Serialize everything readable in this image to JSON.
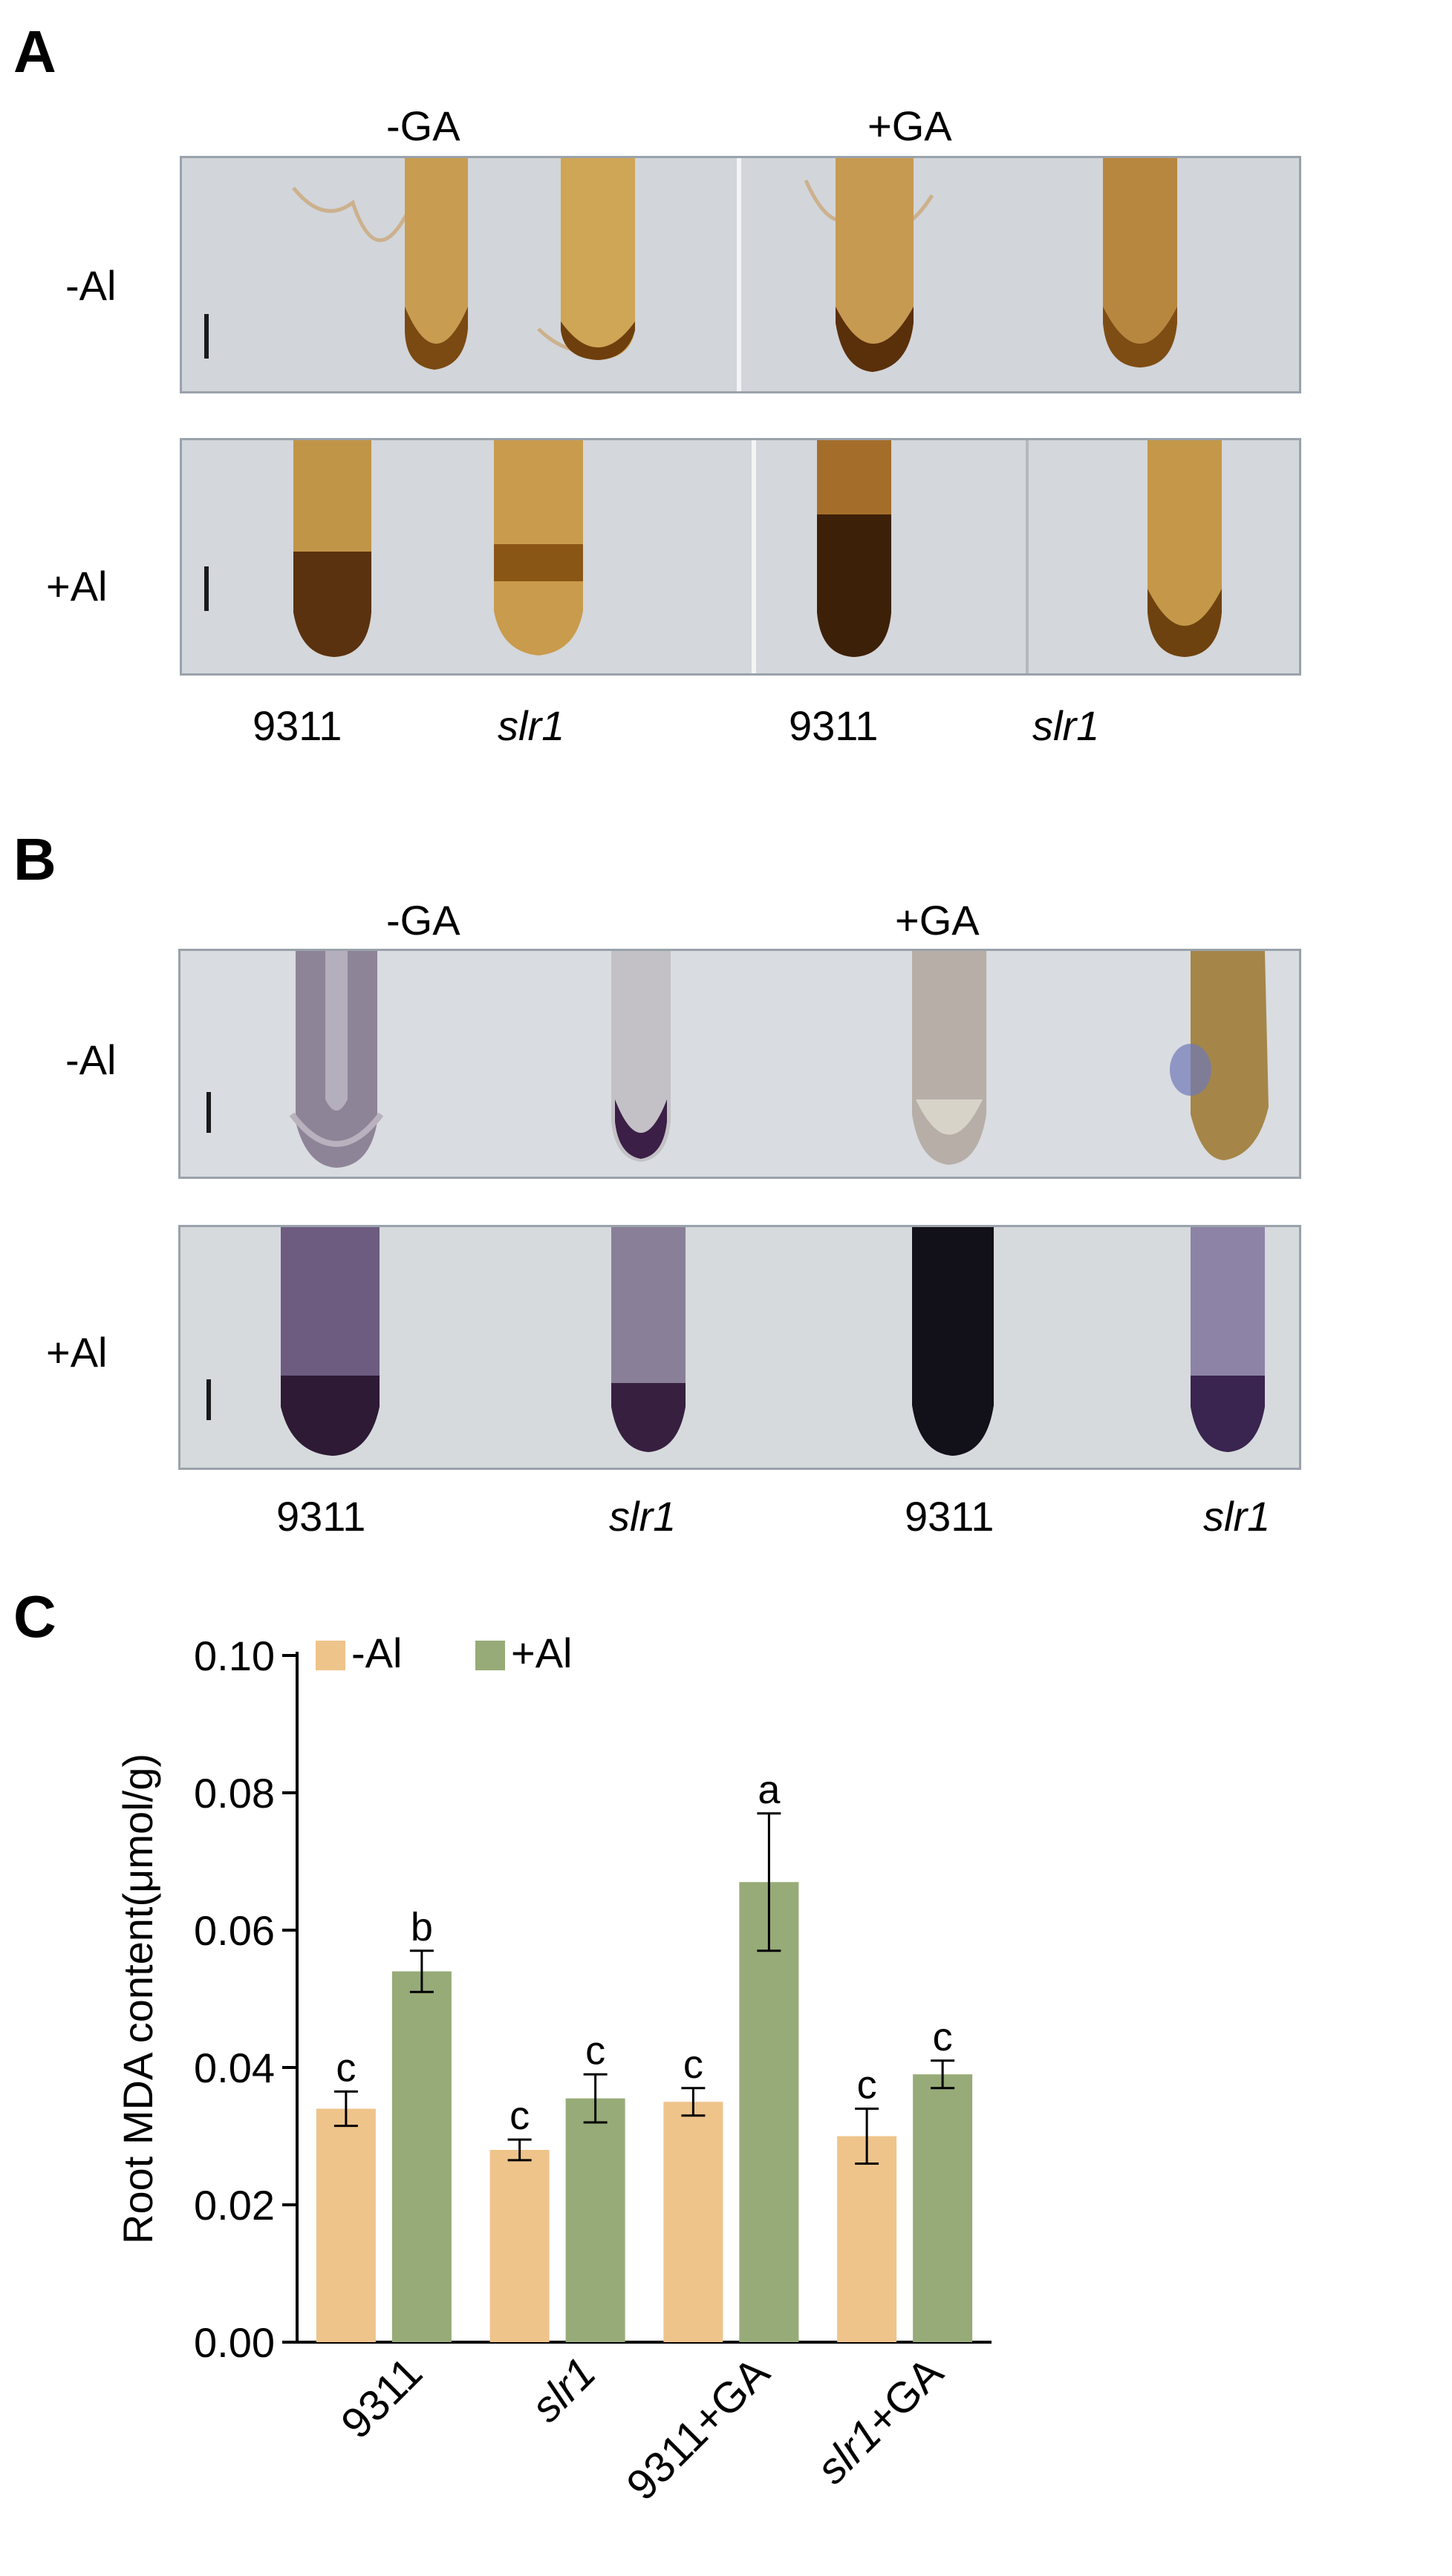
{
  "figure": {
    "panel_A": {
      "letter": "A",
      "col_groups": [
        "-GA",
        "+GA"
      ],
      "rows": [
        "-Al",
        "+Al"
      ],
      "genotypes": [
        "9311",
        "slr1",
        "9311",
        "slr1"
      ]
    },
    "panel_B": {
      "letter": "B",
      "col_groups": [
        "-GA",
        "+GA"
      ],
      "rows": [
        "-Al",
        "+Al"
      ],
      "genotypes": [
        "9311",
        "slr1",
        "9311",
        "slr1"
      ]
    },
    "panel_C": {
      "letter": "C"
    }
  },
  "colors": {
    "minus_al": "#eec48b",
    "plus_al": "#97ab78",
    "stain_A": "#8a5a14",
    "stain_B": "#3d2a55"
  },
  "chart_data": {
    "type": "bar",
    "ylabel": "Root MDA content(μmol/g)",
    "ylim": [
      0,
      0.1
    ],
    "yticks": [
      "0.00",
      "0.02",
      "0.04",
      "0.06",
      "0.08",
      "0.10"
    ],
    "categories": [
      "9311",
      "slr1",
      "9311+GA",
      "slr1+GA"
    ],
    "series": [
      {
        "name": "-Al",
        "values": [
          0.034,
          0.028,
          0.035,
          0.03
        ],
        "errors": [
          0.0025,
          0.0015,
          0.002,
          0.004
        ],
        "letters": [
          "c",
          "c",
          "c",
          "c"
        ]
      },
      {
        "name": "+Al",
        "values": [
          0.054,
          0.0355,
          0.067,
          0.039
        ],
        "errors": [
          0.003,
          0.0035,
          0.01,
          0.002
        ],
        "letters": [
          "b",
          "c",
          "a",
          "c"
        ]
      }
    ],
    "legend": "top-left"
  }
}
